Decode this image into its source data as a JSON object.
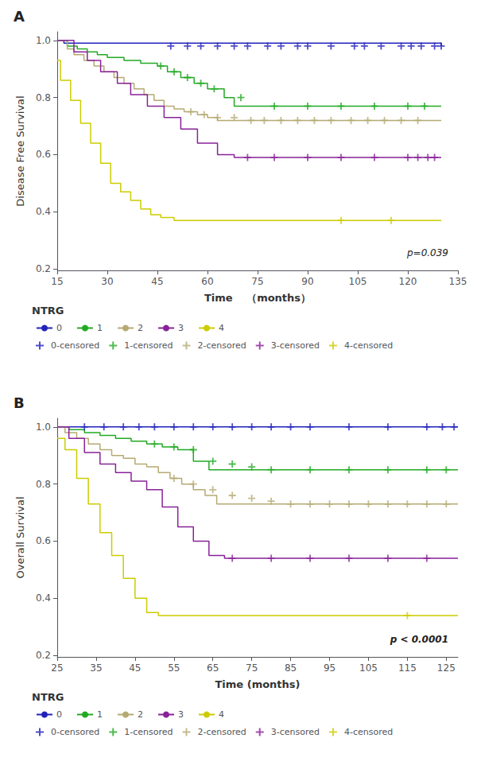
{
  "chart_data": [
    {
      "type": "line",
      "title": "A",
      "ylabel": "Disease Free Survival",
      "xlabel": "Time 　（months）",
      "xlim": [
        15,
        135
      ],
      "ylim": [
        0.195,
        1.03
      ],
      "xticks": [
        15,
        30,
        45,
        60,
        75,
        90,
        105,
        120,
        135
      ],
      "yticks": [
        0.2,
        0.4,
        0.6,
        0.8,
        {
          "value": 1.0,
          "label": "1.0"
        }
      ],
      "grid": false,
      "legend": "bottom",
      "legend_title": "NTRG",
      "annotation": "p=0.039",
      "series": [
        {
          "name": "0",
          "type": "step",
          "color": "#2222bb",
          "x": [
            15,
            17,
            44,
            130
          ],
          "values": [
            1.0,
            0.99,
            0.99,
            0.98
          ]
        },
        {
          "name": "1",
          "type": "step",
          "color": "#22aa22",
          "x": [
            15,
            18,
            21,
            24,
            27,
            30,
            35,
            40,
            45,
            48,
            52,
            56,
            60,
            65,
            68,
            130
          ],
          "values": [
            1.0,
            0.98,
            0.97,
            0.96,
            0.95,
            0.94,
            0.93,
            0.92,
            0.91,
            0.89,
            0.87,
            0.85,
            0.83,
            0.8,
            0.77,
            0.77
          ]
        },
        {
          "name": "2",
          "type": "step",
          "color": "#b5aa72",
          "x": [
            15,
            18,
            20,
            23,
            26,
            29,
            32,
            35,
            38,
            41,
            44,
            47,
            50,
            53,
            57,
            60,
            63,
            130
          ],
          "values": [
            1.0,
            0.97,
            0.95,
            0.93,
            0.91,
            0.89,
            0.87,
            0.85,
            0.83,
            0.81,
            0.79,
            0.77,
            0.76,
            0.75,
            0.74,
            0.73,
            0.72,
            0.72
          ]
        },
        {
          "name": "3",
          "type": "step",
          "color": "#882299",
          "x": [
            15,
            20,
            24,
            28,
            33,
            37,
            42,
            47,
            52,
            57,
            63,
            68,
            130
          ],
          "values": [
            1.0,
            0.96,
            0.93,
            0.89,
            0.85,
            0.81,
            0.77,
            0.73,
            0.69,
            0.64,
            0.6,
            0.59,
            0.59
          ]
        },
        {
          "name": "4",
          "type": "step",
          "color": "#cccc00",
          "x": [
            15,
            16,
            19,
            22,
            25,
            28,
            31,
            34,
            37,
            40,
            43,
            46,
            50,
            53,
            57,
            130
          ],
          "values": [
            0.93,
            0.86,
            0.79,
            0.71,
            0.64,
            0.57,
            0.5,
            0.47,
            0.44,
            0.41,
            0.39,
            0.38,
            0.37,
            0.37,
            0.37,
            0.37
          ]
        },
        {
          "name": "0-censored",
          "type": "scatter",
          "marker": "plus",
          "color": "#2222bb",
          "x": [
            49,
            54,
            58,
            63,
            68,
            72,
            78,
            82,
            87,
            90,
            97,
            104,
            107,
            112,
            118,
            121,
            124,
            128,
            130
          ],
          "values": [
            0.98,
            0.98,
            0.98,
            0.98,
            0.98,
            0.98,
            0.98,
            0.98,
            0.98,
            0.98,
            0.98,
            0.98,
            0.98,
            0.98,
            0.98,
            0.98,
            0.98,
            0.98,
            0.98
          ]
        },
        {
          "name": "1-censored",
          "type": "scatter",
          "marker": "plus",
          "color": "#22aa22",
          "x": [
            46,
            50,
            54,
            58,
            62,
            70,
            80,
            90,
            100,
            110,
            120,
            125
          ],
          "values": [
            0.91,
            0.89,
            0.87,
            0.85,
            0.83,
            0.8,
            0.77,
            0.77,
            0.77,
            0.77,
            0.77,
            0.77
          ]
        },
        {
          "name": "2-censored",
          "type": "scatter",
          "marker": "plus",
          "color": "#b5aa72",
          "x": [
            55,
            59,
            63,
            68,
            73,
            77,
            82,
            87,
            92,
            97,
            103,
            108,
            113,
            118,
            123
          ],
          "values": [
            0.75,
            0.74,
            0.73,
            0.73,
            0.72,
            0.72,
            0.72,
            0.72,
            0.72,
            0.72,
            0.72,
            0.72,
            0.72,
            0.72,
            0.72
          ]
        },
        {
          "name": "3-censored",
          "type": "scatter",
          "marker": "plus",
          "color": "#882299",
          "x": [
            72,
            80,
            90,
            100,
            110,
            120,
            123,
            126,
            128
          ],
          "values": [
            0.59,
            0.59,
            0.59,
            0.59,
            0.59,
            0.59,
            0.59,
            0.59,
            0.59
          ]
        },
        {
          "name": "4-censored",
          "type": "scatter",
          "marker": "plus",
          "color": "#cccc00",
          "x": [
            100,
            115
          ],
          "values": [
            0.37,
            0.37
          ]
        }
      ]
    },
    {
      "type": "line",
      "title": "B",
      "ylabel": "Overall Survival",
      "xlabel": "Time (months)",
      "xlim": [
        25,
        128
      ],
      "ylim": [
        0.195,
        1.03
      ],
      "xticks": [
        25,
        35,
        45,
        55,
        65,
        75,
        85,
        95,
        105,
        115,
        125
      ],
      "yticks": [
        0.2,
        0.4,
        0.6,
        0.8,
        {
          "value": 1.0,
          "label": "1.0"
        }
      ],
      "grid": false,
      "legend": "bottom",
      "legend_title": "NTRG",
      "annotation": "p < 0.0001",
      "series": [
        {
          "name": "0",
          "type": "step",
          "color": "#2222bb",
          "x": [
            25,
            128
          ],
          "values": [
            1.0,
            1.0
          ]
        },
        {
          "name": "1",
          "type": "step",
          "color": "#22aa22",
          "x": [
            25,
            28,
            32,
            36,
            40,
            44,
            48,
            52,
            56,
            60,
            64,
            128
          ],
          "values": [
            1.0,
            0.99,
            0.98,
            0.97,
            0.96,
            0.95,
            0.94,
            0.93,
            0.92,
            0.88,
            0.85,
            0.85
          ]
        },
        {
          "name": "2",
          "type": "step",
          "color": "#b5aa72",
          "x": [
            25,
            27,
            30,
            33,
            36,
            39,
            42,
            45,
            48,
            51,
            54,
            57,
            60,
            63,
            66,
            128
          ],
          "values": [
            1.0,
            0.98,
            0.96,
            0.94,
            0.92,
            0.9,
            0.89,
            0.87,
            0.86,
            0.84,
            0.82,
            0.8,
            0.78,
            0.76,
            0.73,
            0.73
          ]
        },
        {
          "name": "3",
          "type": "step",
          "color": "#882299",
          "x": [
            25,
            28,
            32,
            36,
            40,
            44,
            48,
            52,
            56,
            60,
            64,
            68,
            75,
            128
          ],
          "values": [
            1.0,
            0.96,
            0.91,
            0.87,
            0.84,
            0.81,
            0.78,
            0.72,
            0.65,
            0.6,
            0.55,
            0.54,
            0.54,
            0.54
          ]
        },
        {
          "name": "4",
          "type": "step",
          "color": "#cccc00",
          "x": [
            25,
            27,
            30,
            33,
            36,
            39,
            42,
            45,
            48,
            51,
            57,
            60,
            128
          ],
          "values": [
            0.96,
            0.92,
            0.82,
            0.73,
            0.63,
            0.55,
            0.47,
            0.4,
            0.35,
            0.34,
            0.34,
            0.34,
            0.34
          ]
        },
        {
          "name": "0-censored",
          "type": "scatter",
          "marker": "plus",
          "color": "#2222bb",
          "x": [
            32,
            37,
            42,
            46,
            50,
            55,
            60,
            65,
            70,
            75,
            80,
            85,
            90,
            100,
            110,
            120,
            124,
            127
          ],
          "values": [
            1.0,
            1.0,
            1.0,
            1.0,
            1.0,
            1.0,
            1.0,
            1.0,
            1.0,
            1.0,
            1.0,
            1.0,
            1.0,
            1.0,
            1.0,
            1.0,
            1.0,
            1.0
          ]
        },
        {
          "name": "1-censored",
          "type": "scatter",
          "marker": "plus",
          "color": "#22aa22",
          "x": [
            50,
            55,
            60,
            65,
            70,
            75,
            80,
            90,
            100,
            110,
            120,
            125
          ],
          "values": [
            0.94,
            0.93,
            0.92,
            0.88,
            0.87,
            0.86,
            0.85,
            0.85,
            0.85,
            0.85,
            0.85,
            0.85
          ]
        },
        {
          "name": "2-censored",
          "type": "scatter",
          "marker": "plus",
          "color": "#b5aa72",
          "x": [
            55,
            60,
            65,
            70,
            75,
            80,
            85,
            90,
            95,
            100,
            105,
            110,
            115,
            120,
            125
          ],
          "values": [
            0.82,
            0.8,
            0.78,
            0.76,
            0.75,
            0.74,
            0.73,
            0.73,
            0.73,
            0.73,
            0.73,
            0.73,
            0.73,
            0.73,
            0.73
          ]
        },
        {
          "name": "3-censored",
          "type": "scatter",
          "marker": "plus",
          "color": "#882299",
          "x": [
            70,
            80,
            90,
            100,
            110,
            120
          ],
          "values": [
            0.54,
            0.54,
            0.54,
            0.54,
            0.54,
            0.54
          ]
        },
        {
          "name": "4-censored",
          "type": "scatter",
          "marker": "plus",
          "color": "#cccc00",
          "x": [
            115
          ],
          "values": [
            0.34
          ]
        }
      ]
    }
  ]
}
